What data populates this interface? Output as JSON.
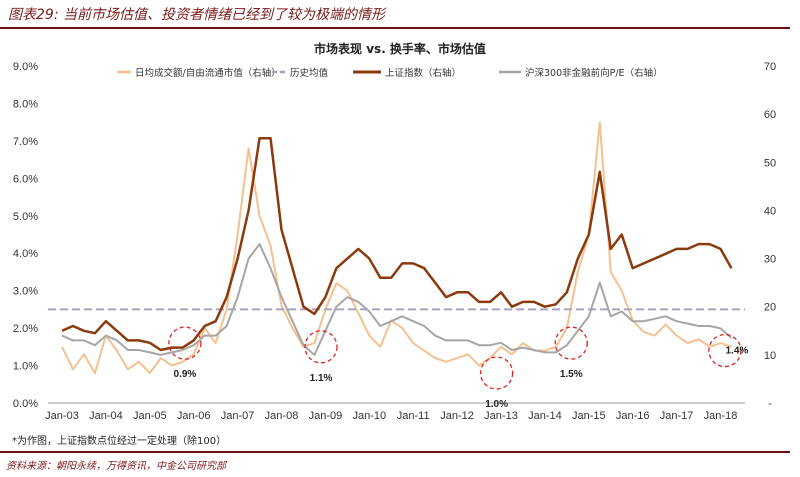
{
  "header": {
    "title": "图表29: 当前市场估值、投资者情绪已经到了较为极端的情形"
  },
  "footer": {
    "note": "*为作图，上证指数点位经过一定处理（除100）",
    "source": "资料来源：朝阳永续，万得资讯，中金公司研究部"
  },
  "chart_data": {
    "type": "line",
    "title": "市场表现 vs. 换手率、市场估值",
    "left_axis": {
      "ylim": [
        0,
        9
      ],
      "ticks": [
        "0.0%",
        "1.0%",
        "2.0%",
        "3.0%",
        "4.0%",
        "5.0%",
        "6.0%",
        "7.0%",
        "8.0%",
        "9.0%"
      ]
    },
    "right_axis": {
      "ylim": [
        0,
        70
      ],
      "ticks": [
        "-",
        "10",
        "20",
        "30",
        "40",
        "50",
        "60",
        "70"
      ]
    },
    "x_ticks": [
      "Jan-03",
      "Jan-04",
      "Jan-05",
      "Jan-06",
      "Jan-07",
      "Jan-08",
      "Jan-09",
      "Jan-10",
      "Jan-11",
      "Jan-12",
      "Jan-13",
      "Jan-14",
      "Jan-15",
      "Jan-16",
      "Jan-17",
      "Jan-18"
    ],
    "x_start_year": 2003,
    "x_step_year": 0.25,
    "legend": [
      "日均成交额/自由流通市值（右轴）",
      "历史均值",
      "上证指数（右轴）",
      "沪深300非金融前向P/E（右轴）"
    ],
    "series": [
      {
        "name": "日均成交额/自由流通市值",
        "axis": "left",
        "color": "#f5c08f",
        "values": [
          1.5,
          0.9,
          1.3,
          0.8,
          1.8,
          1.4,
          0.9,
          1.1,
          0.8,
          1.2,
          1.0,
          1.1,
          1.3,
          2.0,
          1.6,
          2.5,
          4.5,
          6.8,
          5.0,
          4.2,
          2.6,
          2.0,
          1.5,
          1.6,
          2.5,
          3.2,
          3.0,
          2.4,
          1.8,
          1.5,
          2.2,
          2.0,
          1.6,
          1.4,
          1.2,
          1.1,
          1.2,
          1.3,
          1.0,
          1.2,
          1.5,
          1.3,
          1.6,
          1.4,
          1.4,
          1.5,
          2.0,
          3.5,
          4.5,
          7.5,
          3.5,
          3.0,
          2.2,
          1.9,
          1.8,
          2.1,
          1.8,
          1.6,
          1.7,
          1.5,
          1.6,
          1.5
        ]
      },
      {
        "name": "历史均值",
        "axis": "left",
        "color": "#a9a3c0",
        "constant": 2.5
      },
      {
        "name": "上证指数",
        "axis": "right",
        "color": "#8b3a0e",
        "values": [
          15,
          16,
          15,
          14.5,
          17,
          15,
          13,
          13,
          12.5,
          11,
          11.5,
          11.5,
          13,
          16,
          17,
          22,
          30,
          40,
          55,
          55,
          36,
          28,
          20,
          18.5,
          22,
          28,
          30,
          32,
          30,
          26,
          26,
          29,
          29,
          28,
          25,
          22,
          23,
          23,
          21,
          21,
          23,
          20,
          21,
          21,
          20,
          20.5,
          23,
          30,
          35,
          48,
          32,
          35,
          28,
          29,
          30,
          31,
          32,
          32,
          33,
          33,
          32,
          28
        ]
      },
      {
        "name": "沪深300非金融前向P/E",
        "axis": "right",
        "color": "#a6a6a6",
        "values": [
          14,
          13,
          13,
          12,
          14,
          13,
          11,
          11,
          10.5,
          10,
          10.5,
          11,
          12,
          14,
          14,
          16,
          22,
          30,
          33,
          28,
          22,
          17,
          12,
          10,
          15,
          20,
          22,
          21,
          19,
          16,
          17,
          18,
          17,
          16,
          14,
          13,
          13,
          13,
          12,
          12,
          12.5,
          11,
          11.5,
          11,
          10.5,
          10.5,
          12,
          15,
          18,
          25,
          18,
          19,
          17,
          17,
          17.5,
          18,
          17,
          16.5,
          16,
          16,
          15.5,
          13.5
        ]
      }
    ],
    "annotations": [
      {
        "text": "0.9%",
        "x": 2005.8,
        "y": 1.6
      },
      {
        "text": "1.1%",
        "x": 2008.9,
        "y": 1.5
      },
      {
        "text": "1.0%",
        "x": 2012.9,
        "y": 0.8
      },
      {
        "text": "1.5%",
        "x": 2014.6,
        "y": 1.6
      },
      {
        "text": "1.4%",
        "x": 2018.1,
        "y": 1.4
      }
    ]
  }
}
